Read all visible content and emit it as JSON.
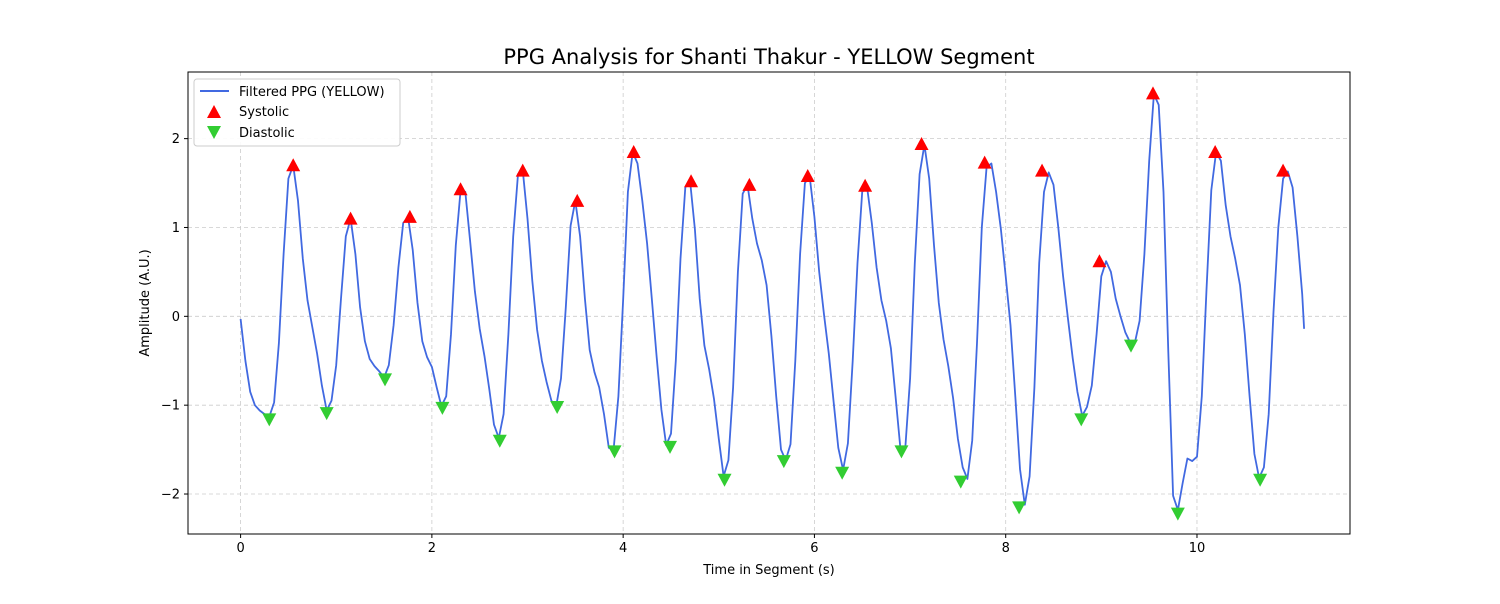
{
  "chart_data": {
    "type": "line",
    "title": "PPG Analysis for Shanti Thakur - YELLOW Segment",
    "xlabel": "Time in Segment (s)",
    "ylabel": "Amplitude (A.U.)",
    "xlim": [
      -0.55,
      11.6
    ],
    "ylim": [
      -2.45,
      2.75
    ],
    "xticks": [
      0,
      2,
      4,
      6,
      8,
      10
    ],
    "yticks": [
      -2,
      -1,
      0,
      1,
      2
    ],
    "grid": true,
    "legend_placement": "upper-left",
    "legend": {
      "line": "Filtered PPG (YELLOW)",
      "systolic": "Systolic",
      "diastolic": "Diastolic"
    },
    "colors": {
      "line": "#4169e1",
      "systolic": "#ff0000",
      "diastolic": "#32cd32",
      "grid": "#cccccc"
    },
    "series": [
      {
        "name": "Filtered PPG (YELLOW)",
        "points": [
          [
            0.0,
            -0.03
          ],
          [
            0.05,
            -0.5
          ],
          [
            0.1,
            -0.85
          ],
          [
            0.15,
            -1.0
          ],
          [
            0.2,
            -1.06
          ],
          [
            0.25,
            -1.1
          ],
          [
            0.3,
            -1.13
          ],
          [
            0.35,
            -0.97
          ],
          [
            0.4,
            -0.3
          ],
          [
            0.45,
            0.7
          ],
          [
            0.5,
            1.55
          ],
          [
            0.55,
            1.7
          ],
          [
            0.6,
            1.3
          ],
          [
            0.65,
            0.65
          ],
          [
            0.7,
            0.18
          ],
          [
            0.75,
            -0.12
          ],
          [
            0.8,
            -0.42
          ],
          [
            0.85,
            -0.78
          ],
          [
            0.9,
            -1.06
          ],
          [
            0.95,
            -0.95
          ],
          [
            1.0,
            -0.55
          ],
          [
            1.05,
            0.2
          ],
          [
            1.1,
            0.9
          ],
          [
            1.15,
            1.1
          ],
          [
            1.2,
            0.7
          ],
          [
            1.25,
            0.1
          ],
          [
            1.3,
            -0.28
          ],
          [
            1.35,
            -0.48
          ],
          [
            1.4,
            -0.56
          ],
          [
            1.45,
            -0.62
          ],
          [
            1.5,
            -0.69
          ],
          [
            1.55,
            -0.55
          ],
          [
            1.6,
            -0.1
          ],
          [
            1.65,
            0.55
          ],
          [
            1.7,
            1.05
          ],
          [
            1.75,
            1.12
          ],
          [
            1.8,
            0.75
          ],
          [
            1.85,
            0.15
          ],
          [
            1.9,
            -0.28
          ],
          [
            1.95,
            -0.46
          ],
          [
            2.0,
            -0.57
          ],
          [
            2.05,
            -0.8
          ],
          [
            2.1,
            -1.01
          ],
          [
            2.15,
            -0.9
          ],
          [
            2.2,
            -0.2
          ],
          [
            2.25,
            0.8
          ],
          [
            2.3,
            1.42
          ],
          [
            2.35,
            1.4
          ],
          [
            2.4,
            0.85
          ],
          [
            2.45,
            0.28
          ],
          [
            2.5,
            -0.14
          ],
          [
            2.55,
            -0.45
          ],
          [
            2.6,
            -0.82
          ],
          [
            2.65,
            -1.22
          ],
          [
            2.7,
            -1.37
          ],
          [
            2.75,
            -1.1
          ],
          [
            2.8,
            -0.2
          ],
          [
            2.85,
            0.9
          ],
          [
            2.9,
            1.6
          ],
          [
            2.95,
            1.65
          ],
          [
            3.0,
            1.1
          ],
          [
            3.05,
            0.4
          ],
          [
            3.1,
            -0.15
          ],
          [
            3.15,
            -0.5
          ],
          [
            3.2,
            -0.74
          ],
          [
            3.25,
            -0.95
          ],
          [
            3.3,
            -1.01
          ],
          [
            3.35,
            -0.7
          ],
          [
            3.4,
            0.1
          ],
          [
            3.45,
            1.02
          ],
          [
            3.5,
            1.3
          ],
          [
            3.55,
            0.9
          ],
          [
            3.6,
            0.2
          ],
          [
            3.65,
            -0.38
          ],
          [
            3.7,
            -0.63
          ],
          [
            3.75,
            -0.8
          ],
          [
            3.8,
            -1.1
          ],
          [
            3.85,
            -1.48
          ],
          [
            3.9,
            -1.5
          ],
          [
            3.95,
            -0.9
          ],
          [
            4.0,
            0.2
          ],
          [
            4.05,
            1.4
          ],
          [
            4.1,
            1.85
          ],
          [
            4.15,
            1.72
          ],
          [
            4.2,
            1.3
          ],
          [
            4.25,
            0.82
          ],
          [
            4.3,
            0.2
          ],
          [
            4.35,
            -0.45
          ],
          [
            4.4,
            -1.05
          ],
          [
            4.45,
            -1.45
          ],
          [
            4.5,
            -1.32
          ],
          [
            4.55,
            -0.5
          ],
          [
            4.6,
            0.65
          ],
          [
            4.65,
            1.45
          ],
          [
            4.7,
            1.52
          ],
          [
            4.75,
            0.98
          ],
          [
            4.8,
            0.2
          ],
          [
            4.85,
            -0.33
          ],
          [
            4.9,
            -0.6
          ],
          [
            4.95,
            -0.93
          ],
          [
            5.0,
            -1.38
          ],
          [
            5.05,
            -1.8
          ],
          [
            5.1,
            -1.62
          ],
          [
            5.15,
            -0.8
          ],
          [
            5.2,
            0.5
          ],
          [
            5.25,
            1.38
          ],
          [
            5.3,
            1.48
          ],
          [
            5.35,
            1.1
          ],
          [
            5.4,
            0.82
          ],
          [
            5.45,
            0.63
          ],
          [
            5.5,
            0.35
          ],
          [
            5.55,
            -0.22
          ],
          [
            5.6,
            -0.9
          ],
          [
            5.65,
            -1.5
          ],
          [
            5.7,
            -1.62
          ],
          [
            5.75,
            -1.44
          ],
          [
            5.8,
            -0.5
          ],
          [
            5.85,
            0.7
          ],
          [
            5.9,
            1.5
          ],
          [
            5.95,
            1.58
          ],
          [
            6.0,
            1.12
          ],
          [
            6.05,
            0.5
          ],
          [
            6.1,
            0.02
          ],
          [
            6.15,
            -0.42
          ],
          [
            6.2,
            -0.96
          ],
          [
            6.25,
            -1.48
          ],
          [
            6.3,
            -1.73
          ],
          [
            6.35,
            -1.43
          ],
          [
            6.4,
            -0.5
          ],
          [
            6.45,
            0.6
          ],
          [
            6.5,
            1.4
          ],
          [
            6.55,
            1.46
          ],
          [
            6.6,
            1.05
          ],
          [
            6.65,
            0.55
          ],
          [
            6.7,
            0.18
          ],
          [
            6.75,
            -0.05
          ],
          [
            6.8,
            -0.36
          ],
          [
            6.85,
            -0.92
          ],
          [
            6.9,
            -1.5
          ],
          [
            6.95,
            -1.48
          ],
          [
            7.0,
            -0.7
          ],
          [
            7.05,
            0.6
          ],
          [
            7.1,
            1.6
          ],
          [
            7.15,
            1.93
          ],
          [
            7.2,
            1.55
          ],
          [
            7.25,
            0.8
          ],
          [
            7.3,
            0.15
          ],
          [
            7.35,
            -0.26
          ],
          [
            7.4,
            -0.56
          ],
          [
            7.45,
            -0.92
          ],
          [
            7.5,
            -1.38
          ],
          [
            7.55,
            -1.7
          ],
          [
            7.6,
            -1.83
          ],
          [
            7.65,
            -1.4
          ],
          [
            7.7,
            -0.3
          ],
          [
            7.75,
            1.0
          ],
          [
            7.8,
            1.68
          ],
          [
            7.85,
            1.72
          ],
          [
            7.9,
            1.4
          ],
          [
            7.95,
            0.98
          ],
          [
            8.0,
            0.45
          ],
          [
            8.05,
            -0.1
          ],
          [
            8.1,
            -0.9
          ],
          [
            8.15,
            -1.72
          ],
          [
            8.2,
            -2.12
          ],
          [
            8.25,
            -1.8
          ],
          [
            8.3,
            -0.8
          ],
          [
            8.35,
            0.6
          ],
          [
            8.4,
            1.4
          ],
          [
            8.45,
            1.62
          ],
          [
            8.5,
            1.48
          ],
          [
            8.55,
            1.0
          ],
          [
            8.6,
            0.45
          ],
          [
            8.65,
            -0.02
          ],
          [
            8.7,
            -0.47
          ],
          [
            8.75,
            -0.85
          ],
          [
            8.8,
            -1.12
          ],
          [
            8.85,
            -1.02
          ],
          [
            8.9,
            -0.78
          ],
          [
            8.95,
            -0.2
          ],
          [
            9.0,
            0.45
          ],
          [
            9.05,
            0.62
          ],
          [
            9.1,
            0.5
          ],
          [
            9.15,
            0.2
          ],
          [
            9.2,
            0.0
          ],
          [
            9.25,
            -0.18
          ],
          [
            9.3,
            -0.29
          ],
          [
            9.35,
            -0.3
          ],
          [
            9.4,
            -0.05
          ],
          [
            9.45,
            0.7
          ],
          [
            9.5,
            1.75
          ],
          [
            9.55,
            2.5
          ],
          [
            9.6,
            2.38
          ],
          [
            9.65,
            1.4
          ],
          [
            9.7,
            -0.4
          ],
          [
            9.75,
            -2.02
          ],
          [
            9.8,
            -2.18
          ],
          [
            9.85,
            -1.88
          ],
          [
            9.9,
            -1.6
          ],
          [
            9.95,
            -1.63
          ],
          [
            10.0,
            -1.58
          ],
          [
            10.05,
            -0.9
          ],
          [
            10.1,
            0.3
          ],
          [
            10.15,
            1.42
          ],
          [
            10.2,
            1.85
          ],
          [
            10.25,
            1.75
          ],
          [
            10.3,
            1.25
          ],
          [
            10.35,
            0.9
          ],
          [
            10.4,
            0.65
          ],
          [
            10.45,
            0.35
          ],
          [
            10.5,
            -0.2
          ],
          [
            10.55,
            -0.9
          ],
          [
            10.6,
            -1.55
          ],
          [
            10.65,
            -1.82
          ],
          [
            10.7,
            -1.7
          ],
          [
            10.75,
            -1.1
          ],
          [
            10.8,
            0.05
          ],
          [
            10.85,
            1.0
          ],
          [
            10.9,
            1.55
          ],
          [
            10.95,
            1.63
          ],
          [
            11.0,
            1.45
          ],
          [
            11.05,
            0.9
          ],
          [
            11.1,
            0.25
          ],
          [
            11.12,
            -0.14
          ]
        ]
      }
    ],
    "systolic_peaks": [
      [
        0.55,
        1.7
      ],
      [
        1.15,
        1.1
      ],
      [
        1.77,
        1.12
      ],
      [
        2.3,
        1.43
      ],
      [
        2.95,
        1.64
      ],
      [
        3.52,
        1.3
      ],
      [
        4.11,
        1.85
      ],
      [
        4.71,
        1.52
      ],
      [
        5.32,
        1.48
      ],
      [
        5.93,
        1.58
      ],
      [
        6.53,
        1.47
      ],
      [
        7.12,
        1.94
      ],
      [
        7.78,
        1.73
      ],
      [
        8.38,
        1.64
      ],
      [
        8.98,
        0.62
      ],
      [
        9.54,
        2.51
      ],
      [
        10.19,
        1.85
      ],
      [
        10.9,
        1.64
      ]
    ],
    "diastolic_troughs": [
      [
        0.3,
        -1.16
      ],
      [
        0.9,
        -1.09
      ],
      [
        1.51,
        -0.71
      ],
      [
        2.11,
        -1.03
      ],
      [
        2.71,
        -1.4
      ],
      [
        3.31,
        -1.02
      ],
      [
        3.91,
        -1.52
      ],
      [
        4.49,
        -1.47
      ],
      [
        5.06,
        -1.84
      ],
      [
        5.68,
        -1.63
      ],
      [
        6.29,
        -1.76
      ],
      [
        6.91,
        -1.52
      ],
      [
        7.53,
        -1.86
      ],
      [
        8.14,
        -2.15
      ],
      [
        8.79,
        -1.16
      ],
      [
        9.31,
        -0.33
      ],
      [
        9.8,
        -2.22
      ],
      [
        10.66,
        -1.84
      ]
    ]
  }
}
